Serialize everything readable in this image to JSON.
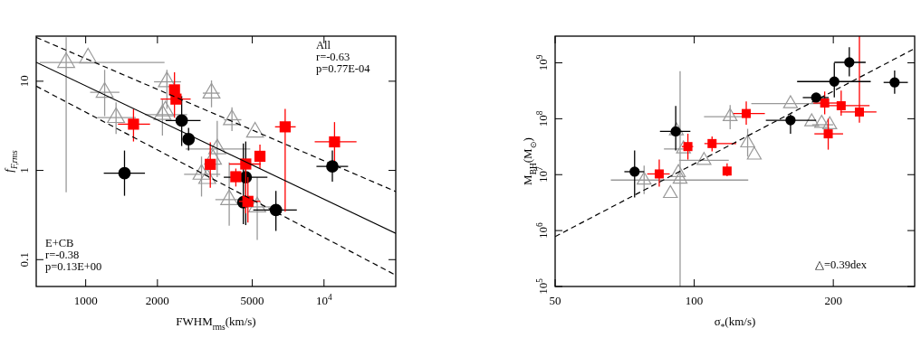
{
  "chart_data": [
    {
      "type": "scatter",
      "xlabel": "FWHM$_{rms}$(km/s)",
      "ylabel": "f$_{F,rms}$",
      "log": "xy",
      "xlim": [
        620,
        20000
      ],
      "ylim": [
        0.05,
        32
      ],
      "xticks": [
        1000,
        2000,
        5000,
        {
          "value": 10000,
          "label": "10$^{4}$"
        }
      ],
      "yticks": [
        0.1,
        1,
        10
      ],
      "annotations": [
        "All\nr=-0.63\np=0.77E-04",
        "E+CB\nr=-0.38\np=0.13E+00"
      ],
      "series": [
        {
          "type": "scatter",
          "marker": "triangle",
          "color": "#999999",
          "x": [
            828,
            1023,
            1201,
            1341,
            2099,
            2160,
            2192,
            3372,
            4109,
            5137,
            3563,
            3420,
            3062,
            3236,
            4001,
            5245
          ],
          "values": [
            16.2,
            18.2,
            7.5,
            3.91,
            4.22,
            4.63,
            9.85,
            7.35,
            3.7,
            2.68,
            1.74,
            1.33,
            0.905,
            0.81,
            0.47,
            0.39
          ],
          "xerrors": [
            [
              641,
              2142
            ],
            null,
            [
              1044,
              1385
            ],
            [
              1120,
              1624
            ],
            [
              1773,
              2665
            ],
            null,
            [
              1935,
              2513
            ],
            [
              3100,
              3650
            ],
            [
              3800,
              4500
            ],
            null,
            [
              2625,
              4904
            ],
            null,
            [
              2587,
              3668
            ],
            null,
            [
              3500,
              4600
            ],
            [
              4700,
              6100
            ]
          ],
          "errors": [
            [
              0.57,
              31
            ],
            null,
            [
              4.06,
              13.4
            ],
            [
              2.56,
              5.8
            ],
            [
              2.46,
              6.2
            ],
            null,
            [
              4.9,
              13.4
            ],
            [
              5.1,
              10.2
            ],
            [
              2.76,
              5.1
            ],
            null,
            [
              0.84,
              3.6
            ],
            null,
            [
              0.51,
              1.43
            ],
            null,
            [
              0.24,
              1.23
            ],
            [
              0.166,
              0.84
            ]
          ]
        },
        {
          "type": "scatter",
          "marker": "circle",
          "color": "#000000",
          "x": [
            1455,
            2528,
            2702,
            4695,
            4587,
            6283,
            10840
          ],
          "values": [
            0.93,
            3.62,
            2.24,
            0.84,
            0.44,
            0.36,
            1.11
          ],
          "xerrors": [
            [
              1191,
              1773
            ],
            [
              2163,
              3034
            ],
            null,
            [
              3797,
              5788
            ],
            null,
            [
              5047,
              7690
            ],
            [
              9296,
              12620
            ]
          ],
          "errors": [
            [
              0.52,
              1.67
            ],
            [
              1.88,
              6.8
            ],
            [
              1.67,
              3.0
            ],
            [
              0.244,
              2.11
            ],
            [
              0.25,
              2.0
            ],
            [
              0.21,
              0.59
            ],
            [
              0.75,
              1.67
            ]
          ]
        },
        {
          "type": "scatter",
          "marker": "square",
          "color": "#ff0000",
          "x": [
            1587,
            2358,
            2393,
            3333,
            4266,
            4695,
            4793,
            5385,
            6870,
            11070
          ],
          "values": [
            3.3,
            8.0,
            6.3,
            1.17,
            0.85,
            1.18,
            0.45,
            1.44,
            3.08,
            2.09
          ],
          "xerrors": [
            [
              1365,
              1862
            ],
            null,
            [
              2063,
              2757
            ],
            null,
            null,
            [
              4000,
              5431
            ],
            [
              4400,
              5400
            ],
            null,
            [
              6230,
              7606
            ],
            [
              9140,
              13690
            ]
          ],
          "errors": [
            [
              2.11,
              4.9
            ],
            [
              3.9,
              12.6
            ],
            null,
            [
              0.64,
              2.06
            ],
            [
              0.66,
              1.05
            ],
            [
              0.33,
              1.33
            ],
            [
              0.26,
              0.84
            ],
            [
              1.05,
              1.95
            ],
            [
              0.345,
              4.9
            ],
            [
              1.28,
              3.48
            ]
          ]
        },
        {
          "type": "line",
          "color": "#000000",
          "line_style": "solid",
          "x": [
            620,
            20000
          ],
          "values": [
            16.3,
            0.197
          ]
        },
        {
          "type": "line",
          "color": "#000000",
          "line_style": "dashed",
          "x": [
            620,
            20000
          ],
          "values": [
            31,
            0.58
          ]
        },
        {
          "type": "line",
          "color": "#000000",
          "line_style": "dashed",
          "x": [
            620,
            20000
          ],
          "values": [
            8.8,
            0.067
          ]
        }
      ]
    },
    {
      "type": "scatter",
      "xlabel": "σ$_{*}$(km/s)",
      "ylabel": "M$_{BH}$(M$_{⊙}$)",
      "log": "xy",
      "xlim": [
        50,
        300
      ],
      "ylim": [
        100000,
        3000000000
      ],
      "xticks": [
        50,
        100,
        200
      ],
      "yticks": [
        {
          "value": 100000,
          "label": "10$^{5}$"
        },
        {
          "value": 1000000,
          "label": "10$^{6}$"
        },
        {
          "value": 10000000,
          "label": "10$^{7}$"
        },
        {
          "value": 100000000,
          "label": "10$^{8}$"
        },
        {
          "value": 1000000000,
          "label": "10$^{9}$"
        }
      ],
      "annotations": [
        "△=0.39dex"
      ],
      "series": [
        {
          "type": "scatter",
          "marker": "triangle",
          "color": "#999999",
          "x": [
            77.9,
            88.8,
            92.4,
            93.2,
            91.5,
            94.8,
            105,
            119.6,
            130.5,
            134.9,
            161.6,
            179.6,
            188.7,
            196.5
          ],
          "values": [
            8000000.0,
            4600000.0,
            10900000.0,
            8300000.0,
            61000000.0,
            28800000.0,
            18000000.0,
            109000000.0,
            37000000.0,
            22400000.0,
            186000000.0,
            88000000.0,
            83000000.0,
            78000000.0
          ],
          "xerrors": [
            [
              66,
              130.9
            ],
            null,
            null,
            null,
            null,
            [
              86,
              98
            ],
            [
              92.7,
              118.8
            ],
            [
              105,
              130
            ],
            null,
            null,
            [
              132.9,
              196.3
            ],
            null,
            null,
            [
              180,
              200
            ]
          ],
          "errors": [
            [
              4500000.0,
              14500000.0
            ],
            null,
            null,
            [
              100000,
              710000000.0
            ],
            null,
            null,
            null,
            [
              65000000.0,
              176000000.0
            ],
            [
              21000000.0,
              66000000.0
            ],
            null,
            null,
            null,
            null,
            null
          ]
        },
        {
          "type": "scatter",
          "marker": "square",
          "color": "#ff0000",
          "x": [
            84.0,
            96.9,
            109.3,
            117.8,
            129.6,
            191.6,
            195,
            208,
            227.8
          ],
          "values": [
            10300000.0,
            31800000.0,
            36000000.0,
            11600000.0,
            124000000.0,
            191000000.0,
            53700000.0,
            171000000.0,
            132000000.0
          ],
          "xerrors": [
            [
              79.1,
              88.5
            ],
            [
              94,
              99.5
            ],
            [
              105.2,
              123.3
            ],
            null,
            [
              121.5,
              142.2
            ],
            [
              181,
              204
            ],
            [
              182,
              210
            ],
            [
              190.7,
              239.6
            ],
            [
              207,
              248
            ]
          ],
          "errors": [
            [
              6100000.0,
              18600000.0
            ],
            [
              18600000.0,
              54000000.0
            ],
            [
              26000000.0,
              48000000.0
            ],
            [
              9400000.0,
              16000000.0
            ],
            [
              78000000.0,
              203000000.0
            ],
            [
              120000000.0,
              306000000.0
            ],
            [
              28000000.0,
              100000000.0
            ],
            [
              113000000.0,
              320000000.0
            ],
            [
              85000000.0,
              3000000000.0
            ]
          ]
        },
        {
          "type": "scatter",
          "marker": "circle",
          "color": "#000000",
          "x": [
            74.3,
            91.2,
            161.6,
            183.6,
            201,
            216.6,
            271.5
          ],
          "values": [
            11300000.0,
            59300000.0,
            94000000.0,
            239000000.0,
            462000000.0,
            1020000000.0,
            446000000.0
          ],
          "xerrors": [
            [
              70.6,
              77.9
            ],
            [
              84.3,
              98.1
            ],
            [
              142.9,
              183.6
            ],
            [
              171.8,
              195.5
            ],
            [
              167,
              241
            ],
            [
              201,
              235
            ],
            [
              257,
              290
            ]
          ],
          "errors": [
            [
              3900000.0,
              27000000.0
            ],
            [
              27000000.0,
              170000000.0
            ],
            [
              54000000.0,
              120000000.0
            ],
            null,
            [
              240000000.0,
              1000000000.0
            ],
            [
              570000000.0,
              1900000000.0
            ],
            [
              280000000.0,
              730000000.0
            ]
          ]
        },
        {
          "type": "line",
          "color": "#000000",
          "line_style": "dashed",
          "x": [
            50,
            300
          ],
          "values": [
            780000,
            1800000000
          ]
        }
      ]
    }
  ]
}
